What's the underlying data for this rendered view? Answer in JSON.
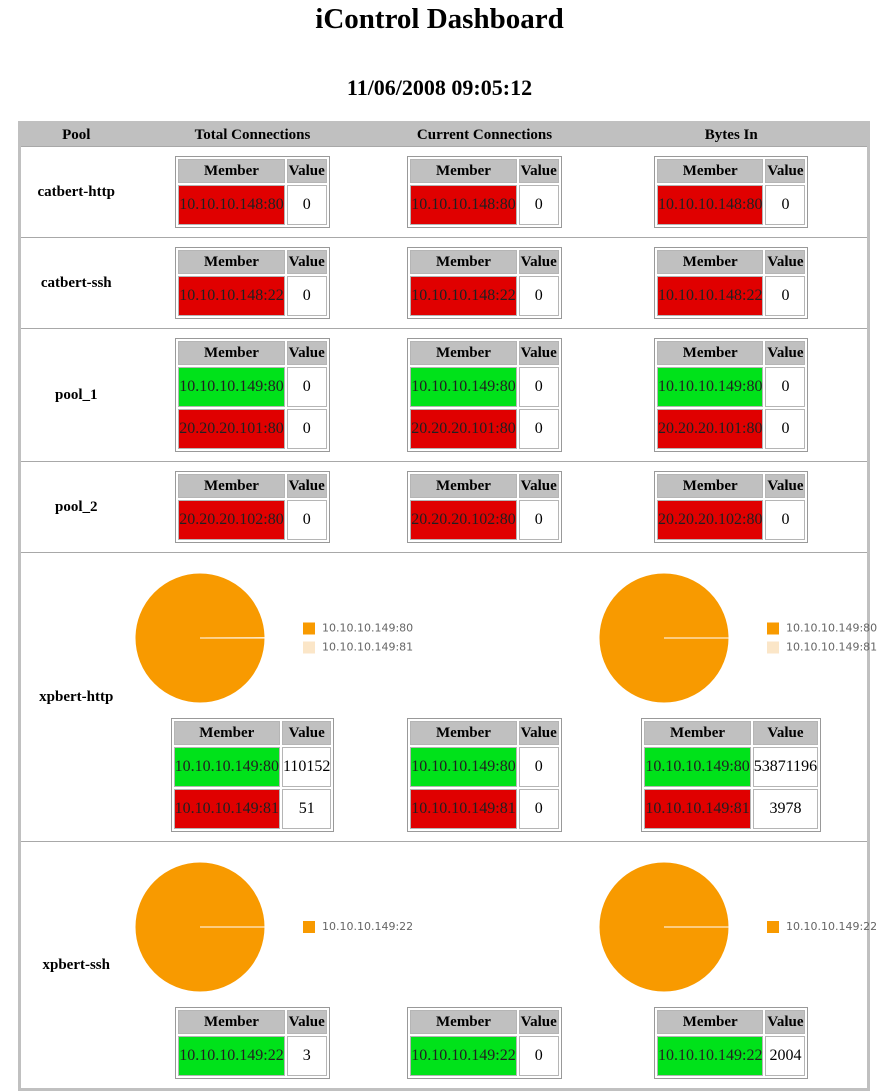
{
  "header": {
    "title": "iControl Dashboard",
    "timestamp": "11/06/2008 09:05:12"
  },
  "table": {
    "columns": [
      "Pool",
      "Total Connections",
      "Current Connections",
      "Bytes In"
    ],
    "member_header": "Member",
    "value_header": "Value",
    "status_colors": {
      "up": "#00e21a",
      "down": "#e00000"
    },
    "pie_colors": [
      "#f89a00",
      "#fbe6c8"
    ],
    "pools": [
      {
        "name": "catbert-http",
        "members": [
          {
            "address": "10.10.10.148:80",
            "status": "down"
          }
        ],
        "values": [
          [
            0
          ],
          [
            0
          ],
          [
            0
          ]
        ]
      },
      {
        "name": "catbert-ssh",
        "members": [
          {
            "address": "10.10.10.148:22",
            "status": "down"
          }
        ],
        "values": [
          [
            0
          ],
          [
            0
          ],
          [
            0
          ]
        ]
      },
      {
        "name": "pool_1",
        "members": [
          {
            "address": "10.10.10.149:80",
            "status": "up"
          },
          {
            "address": "20.20.20.101:80",
            "status": "down"
          }
        ],
        "values": [
          [
            0,
            0
          ],
          [
            0,
            0
          ],
          [
            0,
            0
          ]
        ]
      },
      {
        "name": "pool_2",
        "members": [
          {
            "address": "20.20.20.102:80",
            "status": "down"
          }
        ],
        "values": [
          [
            0
          ],
          [
            0
          ],
          [
            0
          ]
        ]
      },
      {
        "name": "xpbert-http",
        "members": [
          {
            "address": "10.10.10.149:80",
            "status": "up"
          },
          {
            "address": "10.10.10.149:81",
            "status": "down"
          }
        ],
        "values": [
          [
            110152,
            51
          ],
          [
            0,
            0
          ],
          [
            53871196,
            3978
          ]
        ]
      },
      {
        "name": "xpbert-ssh",
        "members": [
          {
            "address": "10.10.10.149:22",
            "status": "up"
          }
        ],
        "values": [
          [
            3
          ],
          [
            0
          ],
          [
            2004
          ]
        ]
      }
    ]
  }
}
